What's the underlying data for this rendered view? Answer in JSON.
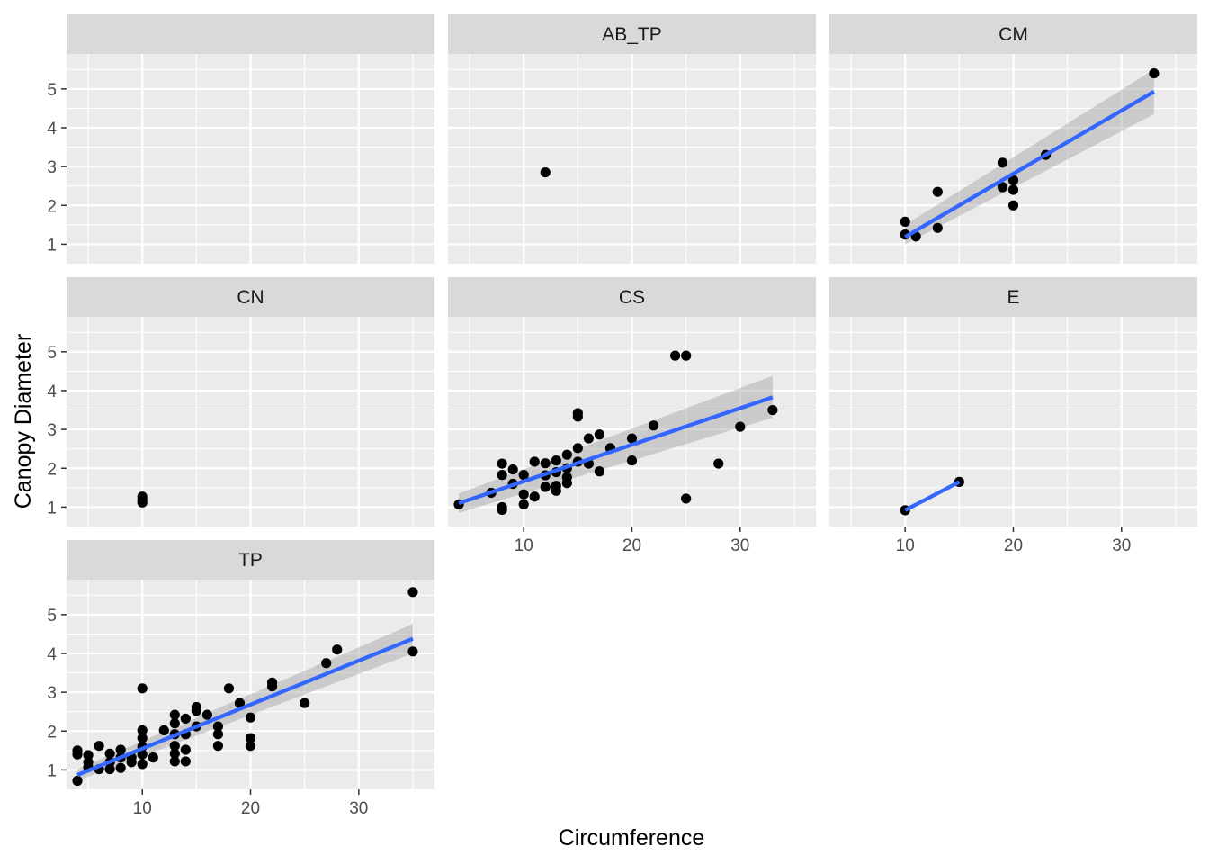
{
  "chart_data": {
    "type": "scatter",
    "xlabel": "Circumference",
    "ylabel": "Canopy Diameter",
    "xlim": [
      3,
      37
    ],
    "ylim": [
      0.5,
      5.9
    ],
    "x_ticks": [
      10,
      20,
      30
    ],
    "y_ticks": [
      1,
      2,
      3,
      4,
      5
    ],
    "grid": true,
    "smooth": "linear regression with confidence band",
    "colors": {
      "panel_background": "#EBEBEB",
      "strip_background": "#D9D9D9",
      "gridline": "#FFFFFF",
      "point": "#000000",
      "fit_line": "#3366FF",
      "ribbon": "#999999"
    },
    "panels": [
      {
        "label": "",
        "points": [],
        "fit": null
      },
      {
        "label": "AB_TP",
        "points": [
          [
            12,
            2.85
          ]
        ],
        "fit": null
      },
      {
        "label": "CM",
        "points": [
          [
            10,
            1.58
          ],
          [
            10,
            1.25
          ],
          [
            11,
            1.2
          ],
          [
            13,
            2.35
          ],
          [
            13,
            1.42
          ],
          [
            19,
            3.1
          ],
          [
            19,
            2.47
          ],
          [
            20,
            2.65
          ],
          [
            20,
            2.4
          ],
          [
            20,
            2.0
          ],
          [
            23,
            3.3
          ],
          [
            33,
            5.4
          ]
        ],
        "fit": {
          "x": [
            10,
            33
          ],
          "y": [
            1.19,
            4.93
          ],
          "lower": [
            1.0,
            4.35
          ],
          "upper": [
            1.5,
            5.5
          ]
        }
      },
      {
        "label": "CN",
        "points": [
          [
            10,
            1.27
          ],
          [
            10,
            1.18
          ],
          [
            10,
            1.12
          ]
        ],
        "fit": null
      },
      {
        "label": "CS",
        "points": [
          [
            4,
            1.07
          ],
          [
            7,
            1.37
          ],
          [
            8,
            2.12
          ],
          [
            8,
            1.83
          ],
          [
            8,
            1.0
          ],
          [
            8,
            0.93
          ],
          [
            9,
            1.97
          ],
          [
            9,
            1.6
          ],
          [
            10,
            1.83
          ],
          [
            10,
            1.33
          ],
          [
            10,
            1.07
          ],
          [
            11,
            2.17
          ],
          [
            11,
            1.27
          ],
          [
            12,
            2.13
          ],
          [
            12,
            1.82
          ],
          [
            12,
            1.52
          ],
          [
            13,
            2.2
          ],
          [
            13,
            1.9
          ],
          [
            13,
            1.55
          ],
          [
            13,
            1.42
          ],
          [
            14,
            2.35
          ],
          [
            14,
            2.0
          ],
          [
            14,
            1.77
          ],
          [
            14,
            1.62
          ],
          [
            15,
            3.42
          ],
          [
            15,
            3.33
          ],
          [
            15,
            2.52
          ],
          [
            15,
            2.17
          ],
          [
            16,
            2.77
          ],
          [
            16,
            2.12
          ],
          [
            17,
            2.87
          ],
          [
            17,
            1.92
          ],
          [
            18,
            2.52
          ],
          [
            20,
            2.77
          ],
          [
            20,
            2.2
          ],
          [
            22,
            3.1
          ],
          [
            24,
            4.9
          ],
          [
            25,
            4.9
          ],
          [
            25,
            1.22
          ],
          [
            28,
            2.12
          ],
          [
            30,
            3.07
          ],
          [
            33,
            3.5
          ]
        ],
        "fit": {
          "x": [
            4,
            33
          ],
          "y": [
            1.1,
            3.83
          ],
          "lower": [
            0.85,
            3.3
          ],
          "upper": [
            1.35,
            4.38
          ]
        }
      },
      {
        "label": "E",
        "points": [
          [
            10,
            0.92
          ],
          [
            15,
            1.65
          ]
        ],
        "fit": {
          "x": [
            10,
            15
          ],
          "y": [
            0.92,
            1.65
          ],
          "lower": [
            0.92,
            1.65
          ],
          "upper": [
            0.92,
            1.65
          ]
        }
      },
      {
        "label": "TP",
        "points": [
          [
            4,
            1.5
          ],
          [
            4,
            1.4
          ],
          [
            4,
            0.72
          ],
          [
            5,
            1.38
          ],
          [
            5,
            1.2
          ],
          [
            5,
            1.07
          ],
          [
            6,
            1.62
          ],
          [
            6,
            1.02
          ],
          [
            7,
            1.42
          ],
          [
            7,
            1.2
          ],
          [
            7,
            1.02
          ],
          [
            8,
            1.52
          ],
          [
            8,
            1.32
          ],
          [
            8,
            1.05
          ],
          [
            9,
            1.32
          ],
          [
            9,
            1.2
          ],
          [
            10,
            3.1
          ],
          [
            10,
            2.02
          ],
          [
            10,
            1.82
          ],
          [
            10,
            1.6
          ],
          [
            10,
            1.4
          ],
          [
            10,
            1.15
          ],
          [
            11,
            1.32
          ],
          [
            12,
            2.02
          ],
          [
            13,
            2.42
          ],
          [
            13,
            2.2
          ],
          [
            13,
            1.92
          ],
          [
            13,
            1.62
          ],
          [
            13,
            1.42
          ],
          [
            13,
            1.22
          ],
          [
            14,
            2.32
          ],
          [
            14,
            1.92
          ],
          [
            14,
            1.52
          ],
          [
            14,
            1.22
          ],
          [
            15,
            2.62
          ],
          [
            15,
            2.52
          ],
          [
            15,
            2.12
          ],
          [
            16,
            2.42
          ],
          [
            17,
            2.12
          ],
          [
            17,
            1.92
          ],
          [
            17,
            1.62
          ],
          [
            18,
            3.1
          ],
          [
            19,
            2.72
          ],
          [
            20,
            2.35
          ],
          [
            20,
            1.82
          ],
          [
            20,
            1.62
          ],
          [
            22,
            3.25
          ],
          [
            22,
            3.15
          ],
          [
            25,
            2.72
          ],
          [
            27,
            3.75
          ],
          [
            28,
            4.1
          ],
          [
            35,
            5.58
          ],
          [
            35,
            4.05
          ]
        ],
        "fit": {
          "x": [
            4,
            35
          ],
          "y": [
            0.87,
            4.38
          ],
          "lower": [
            0.72,
            4.0
          ],
          "upper": [
            1.02,
            4.76
          ]
        }
      }
    ]
  }
}
